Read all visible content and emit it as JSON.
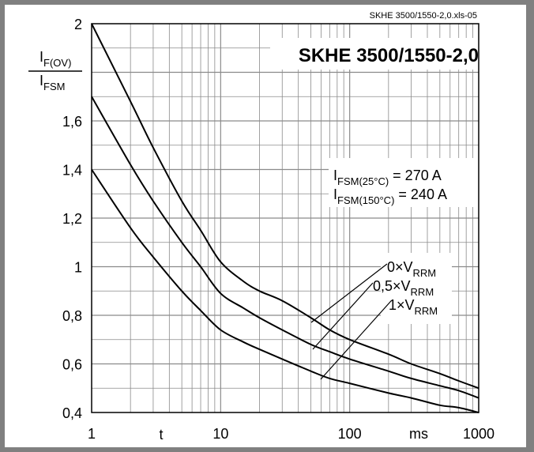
{
  "chart_data": {
    "type": "line",
    "title": "SKHE 3500/1550-2,0",
    "file_label": "SKHE 3500/1550-2,0.xls-05",
    "x_scale": "log",
    "xlim": [
      1,
      1000
    ],
    "ylim": [
      0.4,
      2.0
    ],
    "grid": true,
    "y_ticks": [
      {
        "value": 0.4,
        "label": "0,4"
      },
      {
        "value": 0.6,
        "label": "0,6"
      },
      {
        "value": 0.8,
        "label": "0,8"
      },
      {
        "value": 1.0,
        "label": "1"
      },
      {
        "value": 1.2,
        "label": "1,2"
      },
      {
        "value": 1.4,
        "label": "1,4"
      },
      {
        "value": 1.6,
        "label": "1,6"
      },
      {
        "value": 2.0,
        "label": "2"
      }
    ],
    "x_ticks": [
      {
        "value": 1,
        "label": "1"
      },
      {
        "value": 10,
        "label": "10"
      },
      {
        "value": 100,
        "label": "100"
      },
      {
        "value": 1000,
        "label": "1000"
      }
    ],
    "xlabel": "t",
    "xunit": "ms",
    "ylabel": {
      "num_main": "I",
      "num_sub": "F(OV)",
      "den_main": "I",
      "den_sub": "FSM"
    },
    "annotation": [
      {
        "main": "I",
        "sub": "FSM(25°C)",
        "value": " = 270 A"
      },
      {
        "main": "I",
        "sub": "FSM(150°C)",
        "value": " = 240 A"
      }
    ],
    "series": [
      {
        "name": {
          "pre": "0×V",
          "sub": "RRM"
        },
        "x": [
          1,
          2,
          3,
          5,
          7,
          10,
          15,
          20,
          30,
          50,
          70,
          100,
          200,
          300,
          500,
          700,
          1000
        ],
        "y": [
          2.0,
          1.68,
          1.49,
          1.27,
          1.15,
          1.02,
          0.94,
          0.9,
          0.86,
          0.79,
          0.74,
          0.7,
          0.64,
          0.6,
          0.56,
          0.53,
          0.5
        ]
      },
      {
        "name": {
          "pre": "0,5×V",
          "sub": "RRM"
        },
        "x": [
          1,
          2,
          3,
          5,
          7,
          10,
          15,
          20,
          30,
          50,
          70,
          100,
          200,
          300,
          500,
          700,
          1000
        ],
        "y": [
          1.7,
          1.42,
          1.27,
          1.1,
          1.0,
          0.89,
          0.83,
          0.79,
          0.74,
          0.68,
          0.65,
          0.62,
          0.57,
          0.54,
          0.51,
          0.49,
          0.46
        ]
      },
      {
        "name": {
          "pre": "1×V",
          "sub": "RRM"
        },
        "x": [
          1,
          2,
          3,
          5,
          7,
          10,
          15,
          20,
          30,
          50,
          70,
          100,
          200,
          300,
          500,
          700,
          1000
        ],
        "y": [
          1.4,
          1.16,
          1.04,
          0.9,
          0.82,
          0.74,
          0.69,
          0.66,
          0.62,
          0.57,
          0.54,
          0.52,
          0.48,
          0.46,
          0.43,
          0.42,
          0.4
        ]
      }
    ]
  }
}
